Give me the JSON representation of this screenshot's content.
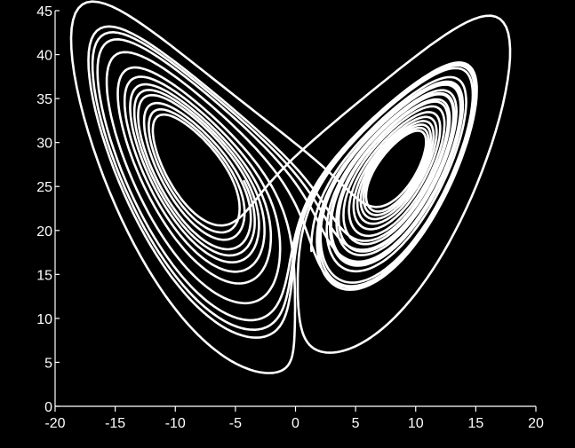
{
  "chart_data": {
    "type": "line",
    "title": "",
    "xlabel": "",
    "ylabel": "",
    "xlim": [
      -20,
      20
    ],
    "ylim": [
      0,
      45
    ],
    "x_ticks": [
      -20,
      -15,
      -10,
      -5,
      0,
      5,
      10,
      15,
      20
    ],
    "y_ticks": [
      0,
      5,
      10,
      15,
      20,
      25,
      30,
      35,
      40,
      45
    ],
    "grid": false,
    "legend": "none",
    "background_color": "#000000",
    "line_color": "#ffffff",
    "series": [
      {
        "description_of_values": "x-z projection of a Lorenz attractor trajectory (sigma=10, rho=28, beta=8/3)",
        "x_range": [
          -17.5,
          17.5
        ],
        "z_range": [
          4.5,
          41.5
        ],
        "left_lobe_center": [
          -8.5,
          27
        ],
        "right_lobe_center": [
          8.5,
          27
        ]
      }
    ]
  }
}
